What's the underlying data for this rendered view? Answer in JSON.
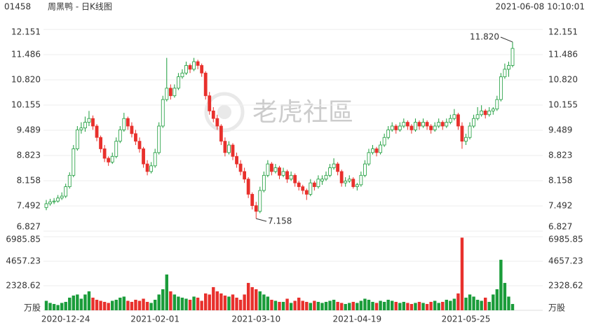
{
  "chart_data": {
    "type": "candlestick",
    "code": "01458",
    "title": "周黑鸭 - 日K线图",
    "timestamp": "2021-06-08 10:10:01",
    "watermark": "老虎社區",
    "volume_unit": "万股",
    "up_color": "#1a9c3a",
    "down_color": "#e8302c",
    "grid": true,
    "ylim": [
      6.827,
      12.151
    ],
    "yticks": [
      12.151,
      11.486,
      {
        "value": 10.82,
        "label": "10.820"
      },
      10.155,
      9.489,
      8.823,
      8.158,
      7.492,
      6.827
    ],
    "y2lim": [
      0,
      6985.85
    ],
    "y2ticks": [
      6985.85,
      4657.23,
      2328.62
    ],
    "high_label": {
      "value": 11.82,
      "label": "11.820"
    },
    "low_label": 7.158,
    "categories": [
      null,
      null,
      null,
      null,
      null,
      "2020-12-24",
      null,
      null,
      null,
      null,
      null,
      null,
      null,
      null,
      null,
      null,
      null,
      null,
      null,
      null,
      null,
      null,
      null,
      null,
      null,
      null,
      null,
      null,
      "2021-02-01",
      null,
      null,
      null,
      null,
      null,
      null,
      null,
      null,
      null,
      null,
      null,
      null,
      null,
      null,
      null,
      null,
      null,
      null,
      null,
      null,
      null,
      null,
      null,
      null,
      null,
      "2021-03-10",
      null,
      null,
      null,
      null,
      null,
      null,
      null,
      null,
      null,
      null,
      null,
      null,
      null,
      null,
      null,
      null,
      null,
      null,
      null,
      null,
      null,
      null,
      null,
      null,
      null,
      "2021-04-19",
      null,
      null,
      null,
      null,
      null,
      null,
      null,
      null,
      null,
      null,
      null,
      null,
      null,
      null,
      null,
      null,
      null,
      null,
      null,
      null,
      null,
      null,
      null,
      null,
      null,
      null,
      null,
      "2021-05-25",
      null,
      null,
      null,
      null,
      null,
      null,
      null,
      null,
      null,
      null,
      null,
      null
    ],
    "ohlc": [
      [
        7.45,
        7.65,
        7.38,
        7.55
      ],
      [
        7.55,
        7.68,
        7.5,
        7.6
      ],
      [
        7.6,
        7.7,
        7.54,
        7.62
      ],
      [
        7.62,
        7.78,
        7.58,
        7.7
      ],
      [
        7.7,
        7.85,
        7.65,
        7.75
      ],
      [
        7.75,
        8.08,
        7.7,
        8.0
      ],
      [
        8.0,
        8.38,
        7.95,
        8.3
      ],
      [
        8.3,
        9.1,
        8.25,
        9.0
      ],
      [
        9.0,
        9.6,
        8.95,
        9.5
      ],
      [
        9.5,
        9.7,
        9.4,
        9.55
      ],
      [
        9.55,
        9.85,
        9.45,
        9.7
      ],
      [
        9.7,
        10.0,
        9.6,
        9.8
      ],
      [
        9.8,
        9.88,
        9.5,
        9.6
      ],
      [
        9.6,
        9.65,
        9.2,
        9.3
      ],
      [
        9.3,
        9.35,
        8.9,
        9.0
      ],
      [
        9.0,
        9.1,
        8.65,
        8.75
      ],
      [
        8.75,
        8.8,
        8.55,
        8.65
      ],
      [
        8.65,
        8.9,
        8.6,
        8.8
      ],
      [
        8.8,
        9.3,
        8.75,
        9.2
      ],
      [
        9.2,
        9.6,
        9.15,
        9.5
      ],
      [
        9.5,
        9.95,
        9.45,
        9.8
      ],
      [
        9.8,
        9.85,
        9.5,
        9.6
      ],
      [
        9.6,
        9.7,
        9.3,
        9.4
      ],
      [
        9.4,
        9.5,
        9.1,
        9.2
      ],
      [
        9.2,
        9.3,
        8.9,
        9.0
      ],
      [
        9.0,
        9.05,
        8.5,
        8.6
      ],
      [
        8.6,
        8.7,
        8.3,
        8.4
      ],
      [
        8.4,
        8.65,
        8.35,
        8.55
      ],
      [
        8.55,
        9.0,
        8.5,
        8.9
      ],
      [
        8.9,
        9.7,
        8.85,
        9.6
      ],
      [
        9.6,
        10.4,
        9.55,
        10.3
      ],
      [
        10.3,
        11.4,
        10.25,
        10.6
      ],
      [
        10.6,
        10.7,
        10.3,
        10.4
      ],
      [
        10.4,
        10.7,
        10.35,
        10.6
      ],
      [
        10.6,
        11.0,
        10.55,
        10.9
      ],
      [
        10.9,
        11.1,
        10.85,
        11.0
      ],
      [
        11.0,
        11.3,
        10.95,
        11.2
      ],
      [
        11.2,
        11.25,
        11.0,
        11.1
      ],
      [
        11.1,
        11.4,
        11.05,
        11.3
      ],
      [
        11.3,
        11.35,
        11.1,
        11.2
      ],
      [
        11.2,
        11.25,
        10.9,
        11.0
      ],
      [
        11.0,
        11.05,
        10.3,
        10.4
      ],
      [
        10.4,
        10.5,
        9.9,
        10.0
      ],
      [
        10.0,
        10.1,
        9.7,
        9.8
      ],
      [
        9.8,
        9.9,
        9.5,
        9.6
      ],
      [
        9.6,
        9.65,
        9.1,
        9.2
      ],
      [
        9.2,
        9.3,
        8.8,
        8.9
      ],
      [
        8.9,
        9.2,
        8.85,
        9.1
      ],
      [
        9.1,
        9.15,
        8.7,
        8.8
      ],
      [
        8.8,
        8.9,
        8.5,
        8.6
      ],
      [
        8.6,
        8.7,
        8.3,
        8.4
      ],
      [
        8.4,
        8.5,
        8.1,
        8.2
      ],
      [
        8.2,
        8.25,
        7.7,
        7.8
      ],
      [
        7.8,
        7.85,
        7.4,
        7.5
      ],
      [
        7.5,
        7.6,
        7.158,
        7.35
      ],
      [
        7.35,
        8.0,
        7.3,
        7.9
      ],
      [
        7.9,
        8.4,
        7.85,
        8.3
      ],
      [
        8.3,
        8.7,
        8.25,
        8.6
      ],
      [
        8.6,
        8.65,
        8.3,
        8.4
      ],
      [
        8.4,
        8.6,
        8.35,
        8.5
      ],
      [
        8.5,
        8.55,
        8.2,
        8.3
      ],
      [
        8.3,
        8.5,
        8.25,
        8.4
      ],
      [
        8.4,
        8.45,
        8.1,
        8.2
      ],
      [
        8.2,
        8.4,
        8.15,
        8.3
      ],
      [
        8.3,
        8.35,
        8.0,
        8.1
      ],
      [
        8.1,
        8.15,
        7.9,
        8.0
      ],
      [
        8.0,
        8.05,
        7.8,
        7.9
      ],
      [
        7.9,
        7.95,
        7.65,
        7.8
      ],
      [
        7.8,
        8.2,
        7.75,
        8.1
      ],
      [
        8.1,
        8.15,
        7.9,
        8.0
      ],
      [
        8.0,
        8.3,
        7.95,
        8.2
      ],
      [
        8.15,
        8.3,
        8.05,
        8.2
      ],
      [
        8.2,
        8.4,
        8.15,
        8.3
      ],
      [
        8.3,
        8.6,
        8.25,
        8.5
      ],
      [
        8.5,
        8.75,
        8.45,
        8.6
      ],
      [
        8.6,
        8.65,
        8.3,
        8.4
      ],
      [
        8.4,
        8.45,
        8.0,
        8.1
      ],
      [
        8.1,
        8.25,
        8.0,
        8.15
      ],
      [
        8.15,
        8.3,
        8.1,
        8.2
      ],
      [
        8.2,
        8.25,
        7.95,
        8.0
      ],
      [
        8.0,
        8.1,
        7.9,
        8.05
      ],
      [
        8.05,
        8.4,
        8.0,
        8.3
      ],
      [
        8.3,
        8.7,
        8.25,
        8.6
      ],
      [
        8.6,
        9.0,
        8.55,
        8.9
      ],
      [
        8.9,
        9.1,
        8.85,
        9.0
      ],
      [
        9.0,
        9.05,
        8.8,
        8.9
      ],
      [
        8.9,
        9.2,
        8.85,
        9.1
      ],
      [
        9.1,
        9.4,
        9.05,
        9.3
      ],
      [
        9.3,
        9.6,
        9.25,
        9.5
      ],
      [
        9.5,
        9.7,
        9.45,
        9.6
      ],
      [
        9.6,
        9.65,
        9.4,
        9.5
      ],
      [
        9.5,
        9.7,
        9.45,
        9.6
      ],
      [
        9.6,
        9.8,
        9.55,
        9.7
      ],
      [
        9.7,
        9.75,
        9.5,
        9.6
      ],
      [
        9.6,
        9.65,
        9.4,
        9.5
      ],
      [
        9.5,
        9.8,
        9.45,
        9.7
      ],
      [
        9.7,
        9.75,
        9.5,
        9.6
      ],
      [
        9.6,
        9.8,
        9.55,
        9.7
      ],
      [
        9.7,
        9.75,
        9.5,
        9.6
      ],
      [
        9.6,
        9.65,
        9.4,
        9.5
      ],
      [
        9.5,
        9.7,
        9.45,
        9.6
      ],
      [
        9.6,
        9.8,
        9.55,
        9.7
      ],
      [
        9.7,
        9.75,
        9.5,
        9.6
      ],
      [
        9.6,
        9.8,
        9.55,
        9.7
      ],
      [
        9.7,
        9.9,
        9.65,
        9.8
      ],
      [
        9.8,
        10.05,
        9.75,
        9.9
      ],
      [
        9.9,
        9.95,
        9.5,
        9.6
      ],
      [
        9.6,
        9.7,
        9.0,
        9.2
      ],
      [
        9.2,
        9.4,
        9.1,
        9.3
      ],
      [
        9.3,
        9.7,
        9.25,
        9.6
      ],
      [
        9.6,
        9.9,
        9.55,
        9.8
      ],
      [
        9.8,
        10.1,
        9.75,
        9.9
      ],
      [
        9.9,
        10.15,
        9.85,
        10.0
      ],
      [
        10.0,
        10.05,
        9.8,
        9.9
      ],
      [
        9.9,
        10.1,
        9.85,
        10.0
      ],
      [
        10.0,
        10.1,
        9.9,
        10.05
      ],
      [
        10.05,
        10.4,
        10.0,
        10.3
      ],
      [
        10.3,
        11.0,
        10.25,
        10.9
      ],
      [
        10.9,
        11.25,
        10.85,
        11.1
      ],
      [
        11.1,
        11.3,
        10.9,
        11.2
      ],
      [
        11.2,
        11.82,
        11.15,
        11.65
      ]
    ],
    "volume": [
      900,
      700,
      600,
      500,
      700,
      800,
      1200,
      1400,
      1500,
      1100,
      1500,
      1800,
      1200,
      1000,
      900,
      800,
      700,
      900,
      1000,
      1200,
      1300,
      900,
      800,
      1000,
      900,
      1100,
      800,
      700,
      1000,
      1500,
      2000,
      3400,
      1800,
      1500,
      1300,
      1200,
      1100,
      1000,
      1300,
      1200,
      900,
      1600,
      1500,
      2200,
      1800,
      1600,
      1400,
      1300,
      1500,
      1200,
      1000,
      1500,
      2600,
      2200,
      2000,
      1800,
      1500,
      1300,
      1000,
      900,
      800,
      800,
      1100,
      700,
      900,
      1200,
      900,
      800,
      700,
      900,
      800,
      700,
      800,
      900,
      1000,
      800,
      700,
      600,
      700,
      800,
      700,
      900,
      1100,
      1000,
      800,
      700,
      900,
      800,
      1000,
      900,
      800,
      700,
      800,
      700,
      600,
      700,
      800,
      700,
      600,
      800,
      900,
      700,
      800,
      1000,
      900,
      1100,
      1600,
      6900,
      1200,
      1500,
      1300,
      1000,
      900,
      1200,
      800,
      1500,
      2000,
      4800,
      2600,
      1300,
      600
    ]
  }
}
